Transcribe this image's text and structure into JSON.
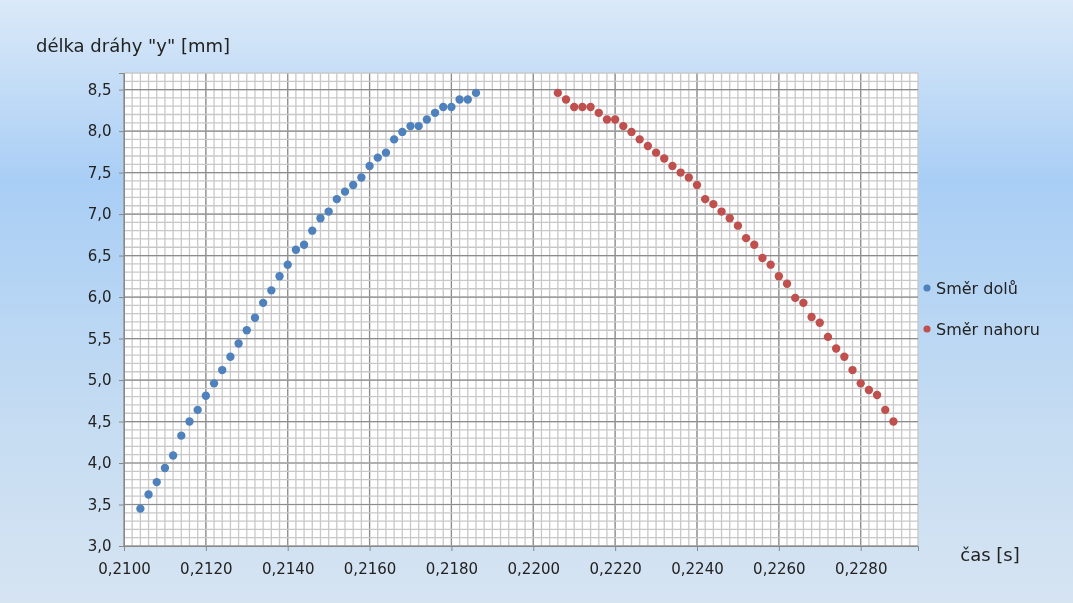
{
  "chart_data": {
    "type": "scatter",
    "ylabel": "délka dráhy \"y\" [mm]",
    "xlabel": "čas [s]",
    "xlim": [
      0.21,
      0.2294
    ],
    "ylim": [
      3,
      8.7
    ],
    "xticks": [
      {
        "value": 0.21,
        "label": "0,2100"
      },
      {
        "value": 0.212,
        "label": "0,2120"
      },
      {
        "value": 0.214,
        "label": "0,2140"
      },
      {
        "value": 0.216,
        "label": "0,2160"
      },
      {
        "value": 0.218,
        "label": "0,2180"
      },
      {
        "value": 0.22,
        "label": "0,2200"
      },
      {
        "value": 0.222,
        "label": "0,2220"
      },
      {
        "value": 0.224,
        "label": "0,2240"
      },
      {
        "value": 0.226,
        "label": "0,2260"
      },
      {
        "value": 0.228,
        "label": "0,2280"
      }
    ],
    "yticks": [
      {
        "value": 3,
        "label": "3,0"
      },
      {
        "value": 3.5,
        "label": "3,5"
      },
      {
        "value": 4,
        "label": "4,0"
      },
      {
        "value": 4.5,
        "label": "4,5"
      },
      {
        "value": 5,
        "label": "5,0"
      },
      {
        "value": 5.5,
        "label": "5,5"
      },
      {
        "value": 6,
        "label": "6,0"
      },
      {
        "value": 6.5,
        "label": "6,5"
      },
      {
        "value": 7,
        "label": "7,0"
      },
      {
        "value": 7.5,
        "label": "7,5"
      },
      {
        "value": 8,
        "label": "8,0"
      },
      {
        "value": 8.5,
        "label": "8,5"
      }
    ],
    "grid": true,
    "legend": "right",
    "marker": "circle",
    "series": [
      {
        "name": "Směr dolů",
        "color": "#4f81bd",
        "x": [
          0.2104,
          0.2106,
          0.2108,
          0.211,
          0.2112,
          0.2114,
          0.2116,
          0.2118,
          0.212,
          0.2122,
          0.2124,
          0.2126,
          0.2128,
          0.213,
          0.2132,
          0.2134,
          0.2136,
          0.2138,
          0.214,
          0.2142,
          0.2144,
          0.2146,
          0.2148,
          0.215,
          0.2152,
          0.2154,
          0.2156,
          0.2158,
          0.216,
          0.2162,
          0.2164,
          0.2166,
          0.2168,
          0.217,
          0.2172,
          0.2174,
          0.2176,
          0.2178,
          0.218,
          0.2182,
          0.2184,
          0.2186
        ],
        "values": [
          3.45,
          3.62,
          3.77,
          3.94,
          4.09,
          4.33,
          4.5,
          4.64,
          4.81,
          4.96,
          5.12,
          5.28,
          5.44,
          5.6,
          5.75,
          5.93,
          6.08,
          6.25,
          6.39,
          6.57,
          6.63,
          6.8,
          6.95,
          7.03,
          7.18,
          7.27,
          7.35,
          7.44,
          7.58,
          7.68,
          7.74,
          7.9,
          7.99,
          8.06,
          8.06,
          8.14,
          8.22,
          8.29,
          8.29,
          8.38,
          8.38,
          8.46
        ]
      },
      {
        "name": "Směr nahoru",
        "color": "#c0504d",
        "x": [
          0.2206,
          0.2208,
          0.221,
          0.2212,
          0.2214,
          0.2216,
          0.2218,
          0.222,
          0.2222,
          0.2224,
          0.2226,
          0.2228,
          0.223,
          0.2232,
          0.2234,
          0.2236,
          0.2238,
          0.224,
          0.2242,
          0.2244,
          0.2246,
          0.2248,
          0.225,
          0.2252,
          0.2254,
          0.2256,
          0.2258,
          0.226,
          0.2262,
          0.2264,
          0.2266,
          0.2268,
          0.227,
          0.2272,
          0.2274,
          0.2276,
          0.2278,
          0.228,
          0.2282,
          0.2284,
          0.2286,
          0.2288
        ],
        "values": [
          8.46,
          8.38,
          8.29,
          8.29,
          8.29,
          8.22,
          8.14,
          8.14,
          8.06,
          7.99,
          7.9,
          7.82,
          7.74,
          7.67,
          7.58,
          7.5,
          7.44,
          7.35,
          7.18,
          7.12,
          7.03,
          6.95,
          6.86,
          6.71,
          6.63,
          6.47,
          6.39,
          6.25,
          6.16,
          5.99,
          5.93,
          5.76,
          5.69,
          5.52,
          5.38,
          5.28,
          5.12,
          4.96,
          4.88,
          4.82,
          4.64,
          4.5
        ]
      }
    ]
  }
}
